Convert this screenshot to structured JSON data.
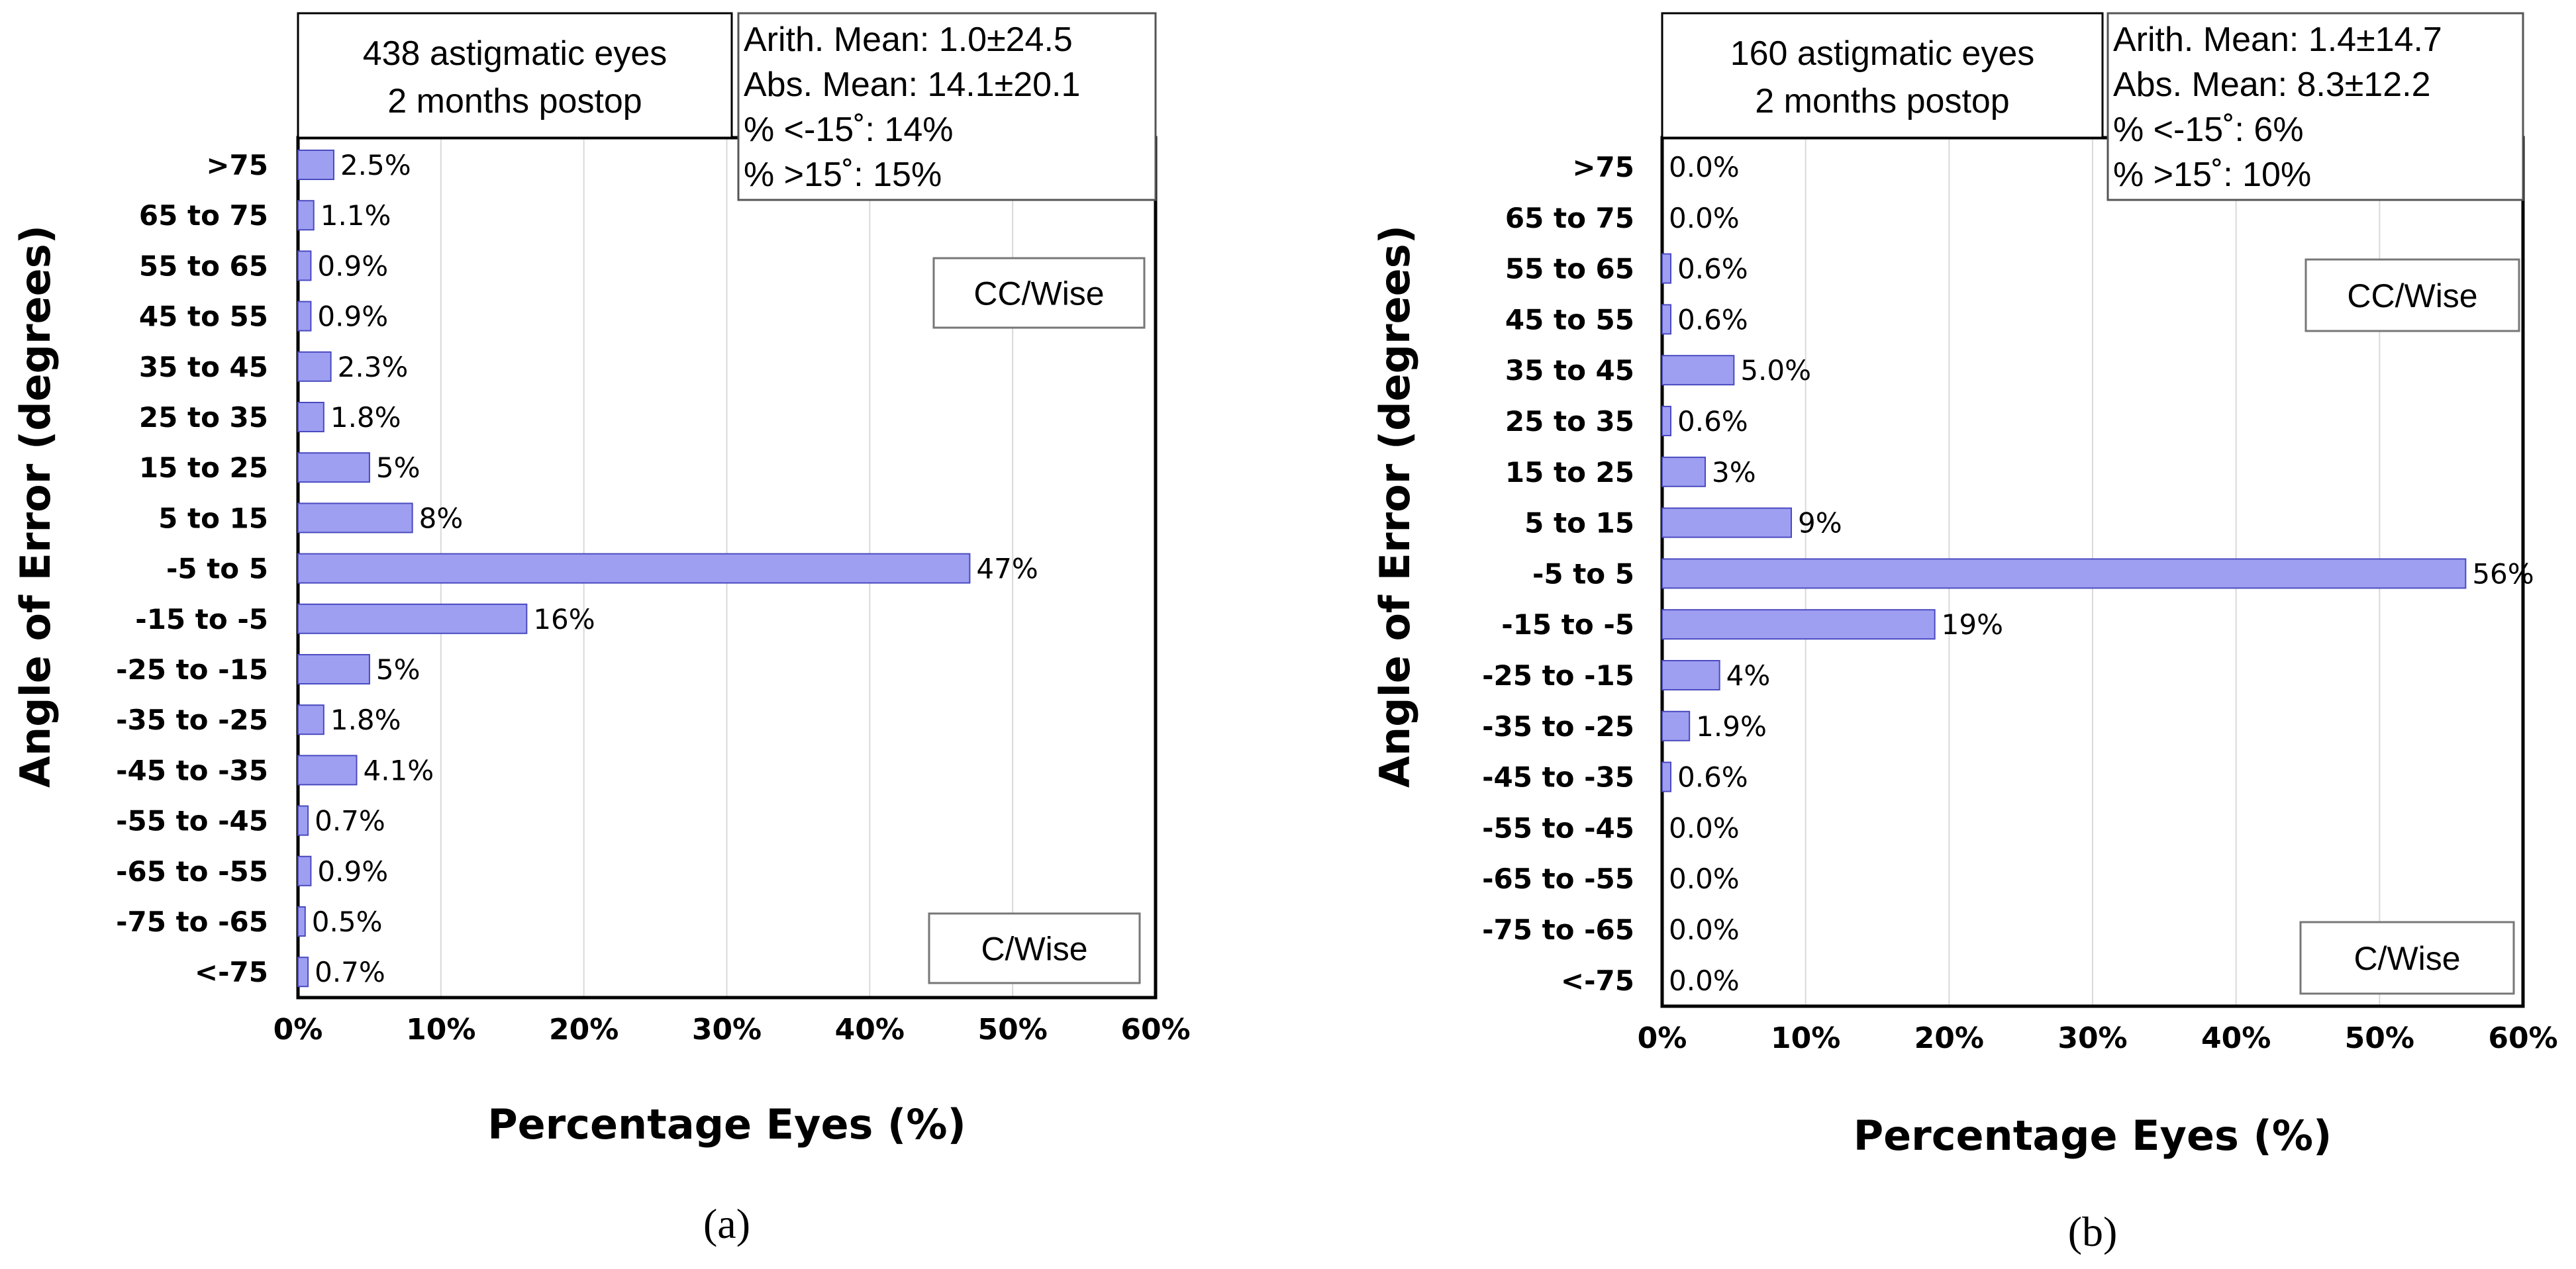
{
  "colors": {
    "bar_fill": "#9f9ff2",
    "bar_stroke": "#4a4ac0",
    "grid": "#d9d9d9",
    "frame": "#000000",
    "box_border": "#555555"
  },
  "chart_data": [
    {
      "type": "bar",
      "orientation": "horizontal",
      "panel_label": "(a)",
      "title_lines": [
        "438 astigmatic eyes",
        "2 months postop"
      ],
      "stats_lines": [
        "Arith. Mean: 1.0±24.5",
        "Abs. Mean: 14.1±20.1",
        "% <-15˚: 14%",
        "% >15˚: 15%"
      ],
      "direction_labels": {
        "top": "CC/Wise",
        "bottom": "C/Wise"
      },
      "xlabel": "Percentage Eyes (%)",
      "ylabel": "Angle of Error (degrees)",
      "xlim": [
        0,
        60
      ],
      "xticks": [
        0,
        10,
        20,
        30,
        40,
        50,
        60
      ],
      "xtick_labels": [
        "0%",
        "10%",
        "20%",
        "30%",
        "40%",
        "50%",
        "60%"
      ],
      "grid": true,
      "categories": [
        ">75",
        "65 to 75",
        "55 to 65",
        "45 to 55",
        "35 to 45",
        "25 to 35",
        "15 to 25",
        "5 to 15",
        "-5 to 5",
        "-15 to -5",
        "-25 to -15",
        "-35 to -25",
        "-45 to -35",
        "-55 to -45",
        "-65 to -55",
        "-75 to -65",
        "<-75"
      ],
      "values": [
        2.5,
        1.1,
        0.9,
        0.9,
        2.3,
        1.8,
        5,
        8,
        47,
        16,
        5,
        1.8,
        4.1,
        0.7,
        0.9,
        0.5,
        0.7
      ],
      "value_labels": [
        "2.5%",
        "1.1%",
        "0.9%",
        "0.9%",
        "2.3%",
        "1.8%",
        "5%",
        "8%",
        "47%",
        "16%",
        "5%",
        "1.8%",
        "4.1%",
        "0.7%",
        "0.9%",
        "0.5%",
        "0.7%"
      ]
    },
    {
      "type": "bar",
      "orientation": "horizontal",
      "panel_label": "(b)",
      "title_lines": [
        "160 astigmatic eyes",
        "2 months postop"
      ],
      "stats_lines": [
        "Arith. Mean: 1.4±14.7",
        "Abs. Mean: 8.3±12.2",
        "% <-15˚: 6%",
        "% >15˚: 10%"
      ],
      "direction_labels": {
        "top": "CC/Wise",
        "bottom": "C/Wise"
      },
      "xlabel": "Percentage Eyes (%)",
      "ylabel": "Angle of Error (degrees)",
      "xlim": [
        0,
        60
      ],
      "xticks": [
        0,
        10,
        20,
        30,
        40,
        50,
        60
      ],
      "xtick_labels": [
        "0%",
        "10%",
        "20%",
        "30%",
        "40%",
        "50%",
        "60%"
      ],
      "grid": true,
      "categories": [
        ">75",
        "65 to 75",
        "55 to 65",
        "45 to 55",
        "35 to 45",
        "25 to 35",
        "15 to 25",
        "5 to 15",
        "-5 to 5",
        "-15 to -5",
        "-25 to -15",
        "-35 to -25",
        "-45 to -35",
        "-55 to -45",
        "-65 to -55",
        "-75 to -65",
        "<-75"
      ],
      "values": [
        0,
        0,
        0.6,
        0.6,
        5,
        0.6,
        3,
        9,
        56,
        19,
        4,
        1.9,
        0.6,
        0,
        0,
        0,
        0
      ],
      "value_labels": [
        "0.0%",
        "0.0%",
        "0.6%",
        "0.6%",
        "5.0%",
        "0.6%",
        "3%",
        "9%",
        "56%",
        "19%",
        "4%",
        "1.9%",
        "0.6%",
        "0.0%",
        "0.0%",
        "0.0%",
        "0.0%"
      ]
    }
  ]
}
